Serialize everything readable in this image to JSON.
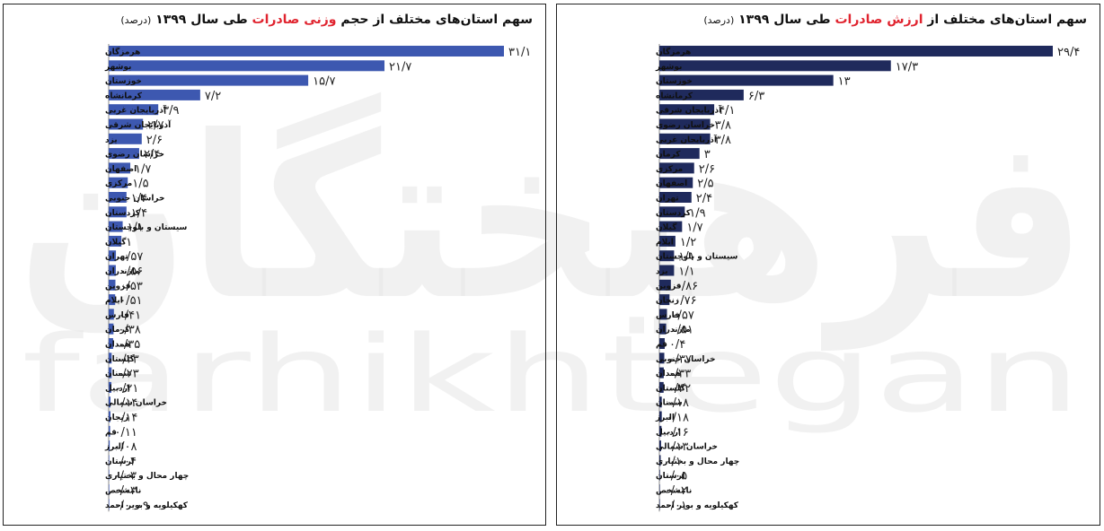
{
  "watermark": {
    "logo_text": "فرهیختگان",
    "latin_text": "farhikhtegan"
  },
  "charts": {
    "weight": {
      "title_prefix": "سهم استان‌های مختلف از حجم",
      "title_highlight": "وزنی صادرات",
      "title_suffix": "طی سال ۱۳۹۹",
      "title_unit": "(درصد)"
    },
    "value": {
      "title_prefix": "سهم استان‌های مختلف از",
      "title_highlight": "ارزش صادرات",
      "title_suffix": "طی سال ۱۳۹۹",
      "title_unit": "(درصد)"
    }
  },
  "colors": {
    "weight_bar": "#3d58b0",
    "value_bar": "#1f2a5c",
    "highlight": "#e0242f"
  },
  "chart_data": [
    {
      "type": "bar",
      "orientation": "horizontal",
      "title": "سهم استان‌های مختلف از حجم وزنی صادرات طی سال ۱۳۹۹ (درصد)",
      "xlabel": "",
      "ylabel": "",
      "xlim": [
        0,
        31.1
      ],
      "grid": false,
      "categories": [
        "هرمزگان",
        "بوشهر",
        "خوزستان",
        "کرمانشاه",
        "آذربایجان غربی",
        "آذربایجان شرقی",
        "یزد",
        "خراسان رضوی",
        "اصفهان",
        "مرکزی",
        "خراسان جنوبی",
        "کردستان",
        "سیستان و بلوچستان",
        "گیلان",
        "تهران",
        "مازندران",
        "قزوین",
        "ایلام",
        "فارس",
        "کرمان",
        "همدان",
        "گلستان",
        "سمنان",
        "اردبیل",
        "خراسان شمالی",
        "زنجان",
        "قم",
        "البرز",
        "لرستان",
        "چهار محال و بختیاری",
        "نامشخص",
        "کهکیلویه و بویر احمد"
      ],
      "values": [
        31.1,
        21.7,
        15.7,
        7.2,
        3.9,
        2.7,
        2.6,
        2.4,
        1.7,
        1.5,
        1.4,
        1.4,
        1.1,
        1,
        0.57,
        0.56,
        0.53,
        0.51,
        0.41,
        0.38,
        0.35,
        0.23,
        0.23,
        0.21,
        0.14,
        0.14,
        0.11,
        0.08,
        0.04,
        0.03,
        0.03,
        0.0009
      ],
      "value_labels": [
        "۳۱/۱",
        "۲۱/۷",
        "۱۵/۷",
        "۷/۲",
        "۳/۹",
        "۲/۷",
        "۲/۶",
        "۲/۴",
        "۱/۷",
        "۱/۵",
        "۱/۴",
        "۱/۴",
        "۱/۱",
        "۱",
        "۰/۵۷",
        "۰/۵۶",
        "۰/۵۳",
        "۰/۵۱",
        "۰/۴۱",
        "۰/۳۸",
        "۰/۳۵",
        "۰/۲۳",
        "۰/۲۳",
        "۰/۲۱",
        "۰/۱۴",
        "۰/۱۴",
        "۰/۱۱",
        "۰/۰۸",
        "۰/۰۴",
        "۰/۰۳",
        "۰/۰۳",
        "۰/۰۰۰۹"
      ]
    },
    {
      "type": "bar",
      "orientation": "horizontal",
      "title": "سهم استان‌های مختلف از ارزش صادرات طی سال ۱۳۹۹ (درصد)",
      "xlabel": "",
      "ylabel": "",
      "xlim": [
        0,
        29.4
      ],
      "grid": false,
      "categories": [
        "هرمزگان",
        "بوشهر",
        "خوزستان",
        "کرمانشاه",
        "آذربایجان شرقی",
        "خراسان رضوی",
        "آذربایجان غربی",
        "کرمان",
        "مرکزی",
        "اصفهان",
        "تهران",
        "کردستان",
        "گیلان",
        "ایلام",
        "سیستان و بلوچستان",
        "یزد",
        "قزوین",
        "زنجان",
        "فارس",
        "مازندران",
        "قم",
        "خراسان جنوبی",
        "همدان",
        "گلستان",
        "سمنان",
        "البرز",
        "اردبیل",
        "خراسان شمالی",
        "چهار محال و بختیاری",
        "لرستان",
        "نامشخص",
        "کهکیلویه و بویر احمد"
      ],
      "values": [
        29.4,
        17.3,
        13,
        6.3,
        4.1,
        3.8,
        3.8,
        3,
        2.6,
        2.5,
        2.4,
        1.9,
        1.7,
        1.2,
        1.1,
        1.1,
        0.86,
        0.76,
        0.57,
        0.51,
        0.4,
        0.37,
        0.33,
        0.32,
        0.18,
        0.18,
        0.16,
        0.13,
        0.1,
        0.05,
        0.02,
        0.01
      ],
      "value_labels": [
        "۲۹/۴",
        "۱۷/۳",
        "۱۳",
        "۶/۳",
        "۴/۱",
        "۳/۸",
        "۳/۸",
        "۳",
        "۲/۶",
        "۲/۵",
        "۲/۴",
        "۱/۹",
        "۱/۷",
        "۱/۲",
        "۱/۱",
        "۱/۱",
        "۰/۸۶",
        "۰/۷۶",
        "۰/۵۷",
        "۰/۵۱",
        "۰/۴",
        "۰/۳۷",
        "۰/۳۳",
        "۰/۳۲",
        "۰/۱۸",
        "۰/۱۸",
        "۰/۱۶",
        "۰/۱۳",
        "۰/۱",
        "۰/۰۵",
        "۰/۰۲",
        "۰/۰۱"
      ]
    }
  ]
}
